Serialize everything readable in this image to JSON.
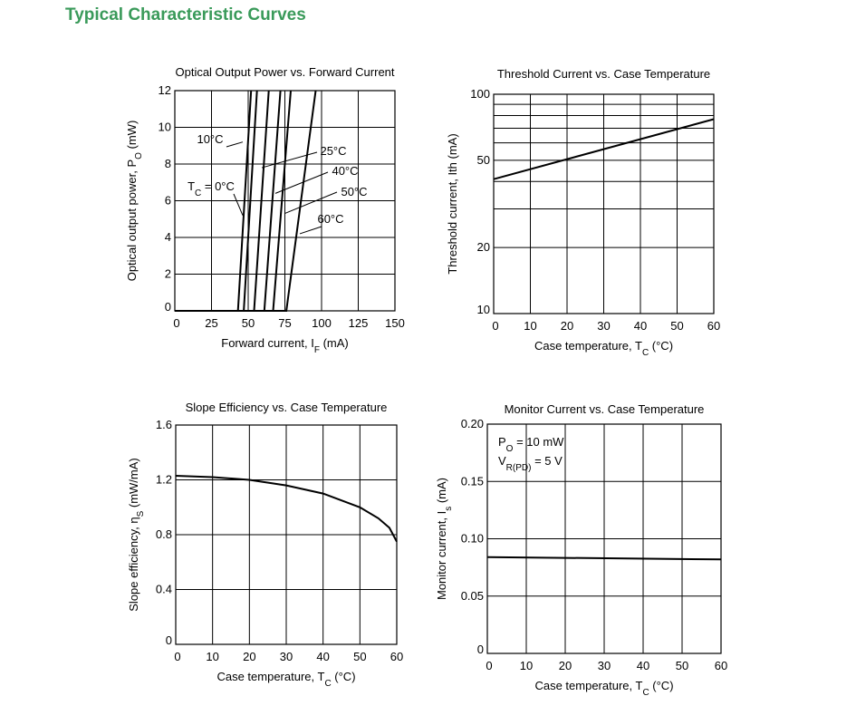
{
  "heading": "Typical Characteristic Curves",
  "colors": {
    "heading": "#3a9a5a",
    "grid": "#000000",
    "curve": "#000000"
  },
  "chart_data": [
    {
      "id": "po-if",
      "type": "line",
      "title": "Optical Output Power vs. Forward Current",
      "xlabel": "Forward current, I_F (mA)",
      "ylabel": "Optical output power, P_O (mW)",
      "xlim": [
        0,
        150
      ],
      "ylim": [
        0,
        12
      ],
      "xticks": [
        0,
        25,
        50,
        75,
        100,
        125,
        150
      ],
      "yticks": [
        0,
        2,
        4,
        6,
        8,
        10,
        12
      ],
      "grid": true,
      "series": [
        {
          "name": "T_C = 0°C",
          "threshold": 43,
          "x": [
            0,
            43,
            52
          ],
          "y": [
            0,
            0,
            12
          ]
        },
        {
          "name": "10°C",
          "threshold": 47,
          "x": [
            0,
            47,
            56
          ],
          "y": [
            0,
            0,
            12
          ]
        },
        {
          "name": "25°C",
          "threshold": 54,
          "x": [
            0,
            54,
            64
          ],
          "y": [
            0,
            0,
            12
          ]
        },
        {
          "name": "40°C",
          "threshold": 61,
          "x": [
            0,
            61,
            72
          ],
          "y": [
            0,
            0,
            12
          ]
        },
        {
          "name": "50°C",
          "threshold": 67,
          "x": [
            0,
            67,
            79
          ],
          "y": [
            0,
            0,
            12
          ]
        },
        {
          "name": "60°C",
          "threshold": 76,
          "x": [
            0,
            76,
            96
          ],
          "y": [
            0,
            0,
            12
          ]
        }
      ],
      "annotations": [
        {
          "text": "10°C",
          "series": "10°C"
        },
        {
          "text": "T_C = 0°C",
          "series": "T_C = 0°C"
        },
        {
          "text": "25°C",
          "series": "25°C"
        },
        {
          "text": "40°C",
          "series": "40°C"
        },
        {
          "text": "50°C",
          "series": "50°C"
        },
        {
          "text": "60°C",
          "series": "60°C"
        }
      ]
    },
    {
      "id": "ith-tc",
      "type": "line",
      "title": "Threshold Current vs. Case Temperature",
      "xlabel": "Case temperature, T_C (°C)",
      "ylabel": "Threshold current, Ith (mA)",
      "xlim": [
        0,
        60
      ],
      "ylim": [
        10,
        100
      ],
      "yscale": "log",
      "xticks": [
        0,
        10,
        20,
        30,
        40,
        50,
        60
      ],
      "yticks": [
        10,
        20,
        50,
        100
      ],
      "ygrid": [
        20,
        30,
        40,
        50,
        60,
        70,
        80,
        90
      ],
      "grid": true,
      "series": [
        {
          "x": [
            0,
            60
          ],
          "y": [
            41,
            77
          ]
        }
      ]
    },
    {
      "id": "eta-tc",
      "type": "line",
      "title": "Slope Efficiency vs. Case Temperature",
      "xlabel": "Case temperature, T_C (°C)",
      "ylabel": "Slope efficiency, η_S (mW/mA)",
      "xlim": [
        0,
        60
      ],
      "ylim": [
        0,
        1.6
      ],
      "xticks": [
        0,
        10,
        20,
        30,
        40,
        50,
        60
      ],
      "yticks": [
        0,
        0.4,
        0.8,
        1.2,
        1.6
      ],
      "ytick_labels": [
        "0",
        "0.4",
        "0.8",
        "1.2",
        "1.6"
      ],
      "grid": true,
      "series": [
        {
          "x": [
            0,
            10,
            20,
            30,
            40,
            50,
            55,
            58,
            60
          ],
          "y": [
            1.23,
            1.22,
            1.2,
            1.16,
            1.1,
            1.0,
            0.92,
            0.85,
            0.75
          ]
        }
      ]
    },
    {
      "id": "is-tc",
      "type": "line",
      "title": "Monitor Current vs. Case Temperature",
      "xlabel": "Case temperature, T_C (°C)",
      "ylabel": "Monitor current, I_s (mA)",
      "xlim": [
        0,
        60
      ],
      "ylim": [
        0,
        0.2
      ],
      "xticks": [
        0,
        10,
        20,
        30,
        40,
        50,
        60
      ],
      "yticks": [
        0,
        0.05,
        0.1,
        0.15,
        0.2
      ],
      "ytick_labels": [
        "0",
        "0.05",
        "0.10",
        "0.15",
        "0.20"
      ],
      "grid": true,
      "conditions": [
        "P_O = 10 mW",
        "V_R(PD) = 5 V"
      ],
      "series": [
        {
          "x": [
            0,
            60
          ],
          "y": [
            0.084,
            0.082
          ]
        }
      ]
    }
  ]
}
